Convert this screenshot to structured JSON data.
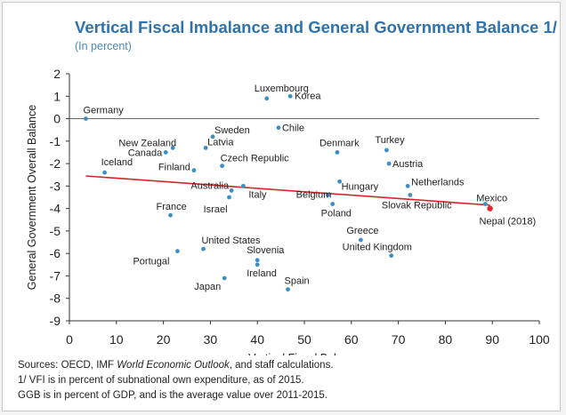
{
  "title": "Vertical Fiscal Imbalance and General Government Balance 1/",
  "subtitle": "(In percent)",
  "notes": {
    "sources_prefix": "Sources: OECD, IMF ",
    "sources_italic": "World Economic Outlook",
    "sources_suffix": ", and staff calculations.",
    "note1": "1/ VFI is in percent of subnational own expenditure, as of 2015.",
    "note2": "GGB is in percent of GDP, and is the average value over 2011-2015."
  },
  "colors": {
    "title": "#2f73ad",
    "point": "#3d8ec5",
    "trend": "#d62728",
    "highlight": "#e8232a"
  },
  "chart_data": {
    "type": "scatter",
    "xlabel": "Vertical Fiscal Balance",
    "ylabel": "General Government Overall Balance",
    "xlim": [
      0,
      100
    ],
    "ylim": [
      -9,
      2
    ],
    "xticks": [
      "0",
      "10",
      "20",
      "30",
      "40",
      "50",
      "60",
      "70",
      "80",
      "90",
      "100"
    ],
    "yticks": [
      "2",
      "1",
      "0",
      "-1",
      "-2",
      "-3",
      "-4",
      "-5",
      "-6",
      "-7",
      "-8",
      "-9"
    ],
    "grid": false,
    "points": [
      {
        "label": "Germany",
        "x": 3.5,
        "y": 0.0,
        "highlight": false
      },
      {
        "label": "Iceland",
        "x": 7.5,
        "y": -2.4,
        "highlight": false
      },
      {
        "label": "Canada",
        "x": 20.5,
        "y": -1.5,
        "highlight": false
      },
      {
        "label": "New Zealand",
        "x": 22.0,
        "y": -1.3,
        "highlight": false
      },
      {
        "label": "France",
        "x": 21.5,
        "y": -4.3,
        "highlight": false
      },
      {
        "label": "Finland",
        "x": 26.5,
        "y": -2.3,
        "highlight": false
      },
      {
        "label": "Latvia",
        "x": 29.0,
        "y": -1.3,
        "highlight": false
      },
      {
        "label": "Sweden",
        "x": 30.5,
        "y": -0.8,
        "highlight": false
      },
      {
        "label": "United States",
        "x": 28.5,
        "y": -5.8,
        "highlight": false
      },
      {
        "label": "Portugal",
        "x": 23.0,
        "y": -5.9,
        "highlight": false
      },
      {
        "label": "Czech Republic",
        "x": 32.5,
        "y": -2.1,
        "highlight": false
      },
      {
        "label": "Australia",
        "x": 34.5,
        "y": -3.2,
        "highlight": false
      },
      {
        "label": "Israel",
        "x": 34.0,
        "y": -3.5,
        "highlight": false
      },
      {
        "label": "Italy",
        "x": 37.0,
        "y": -3.0,
        "highlight": false
      },
      {
        "label": "Japan",
        "x": 33.0,
        "y": -7.1,
        "highlight": false
      },
      {
        "label": "Slovenia",
        "x": 40.0,
        "y": -6.3,
        "highlight": false
      },
      {
        "label": "Ireland",
        "x": 40.0,
        "y": -6.5,
        "highlight": false
      },
      {
        "label": "Luxembourg",
        "x": 42.0,
        "y": 0.9,
        "highlight": false
      },
      {
        "label": "Korea",
        "x": 47.0,
        "y": 1.0,
        "highlight": false
      },
      {
        "label": "Chile",
        "x": 44.5,
        "y": -0.4,
        "highlight": false
      },
      {
        "label": "Spain",
        "x": 46.5,
        "y": -7.6,
        "highlight": false
      },
      {
        "label": "Belgium",
        "x": 55.0,
        "y": -3.4,
        "highlight": false
      },
      {
        "label": "Poland",
        "x": 56.0,
        "y": -3.8,
        "highlight": false
      },
      {
        "label": "Hungary",
        "x": 57.5,
        "y": -2.8,
        "highlight": false
      },
      {
        "label": "Denmark",
        "x": 57.0,
        "y": -1.5,
        "highlight": false
      },
      {
        "label": "Greece",
        "x": 62.0,
        "y": -5.4,
        "highlight": false
      },
      {
        "label": "Turkey",
        "x": 67.5,
        "y": -1.4,
        "highlight": false
      },
      {
        "label": "Austria",
        "x": 68.0,
        "y": -2.0,
        "highlight": false
      },
      {
        "label": "United Kingdom",
        "x": 68.5,
        "y": -6.1,
        "highlight": false
      },
      {
        "label": "Netherlands",
        "x": 72.0,
        "y": -3.0,
        "highlight": false
      },
      {
        "label": "Slovak Republic",
        "x": 72.5,
        "y": -3.4,
        "highlight": false
      },
      {
        "label": "Mexico",
        "x": 88.5,
        "y": -3.8,
        "highlight": false
      },
      {
        "label": "Nepal (2018)",
        "x": 89.5,
        "y": -4.0,
        "highlight": true
      }
    ],
    "trendline": {
      "x": [
        3.5,
        89.5
      ],
      "y": [
        -2.55,
        -3.85
      ]
    }
  }
}
